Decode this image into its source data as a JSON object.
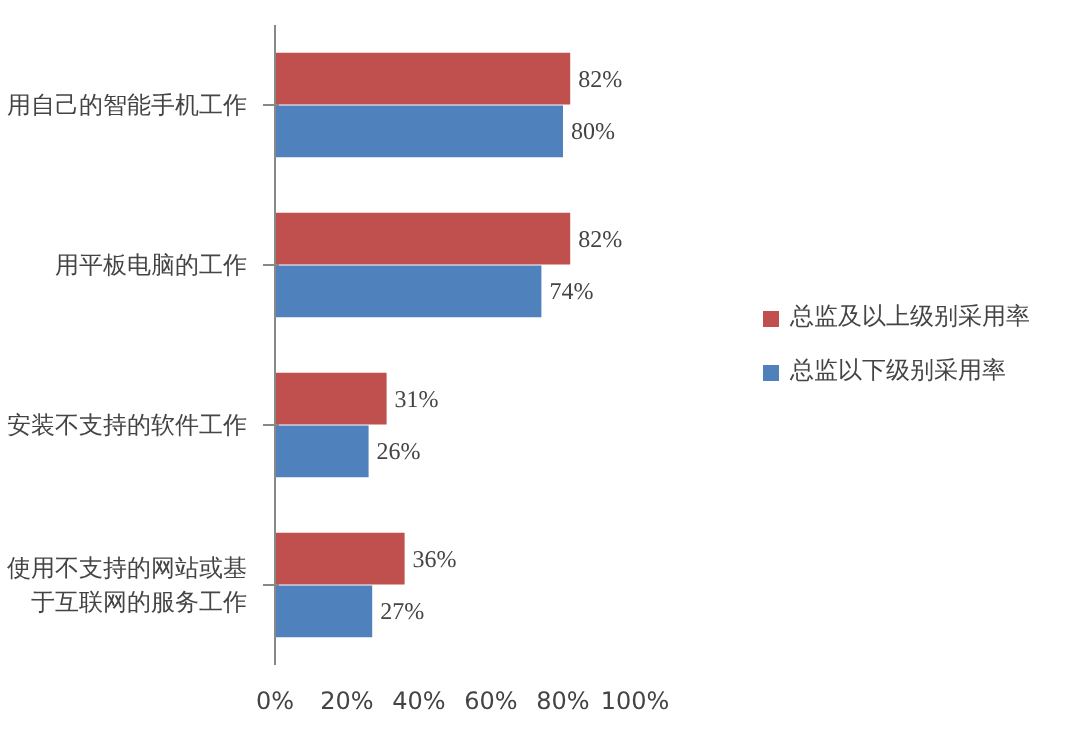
{
  "chart_data": {
    "type": "bar",
    "orientation": "horizontal",
    "categories": [
      "用自己的智能手机工作",
      "用平板电脑的工作",
      "安装不支持的软件工作",
      "使用不支持的网站或基于互联网的服务工作"
    ],
    "series": [
      {
        "name": "总监及以上级别采用率",
        "color": "#c0504d",
        "values": [
          82,
          82,
          31,
          36
        ],
        "value_labels": [
          "82%",
          "82%",
          "31%",
          "36%"
        ]
      },
      {
        "name": "总监以下级别采用率",
        "color": "#4f81bd",
        "values": [
          80,
          74,
          26,
          27
        ],
        "value_labels": [
          "80%",
          "74%",
          "26%",
          "27%"
        ]
      }
    ],
    "xlim": [
      0,
      100
    ],
    "xticks": [
      {
        "value": 0,
        "label": "0%"
      },
      {
        "value": 20,
        "label": "20%"
      },
      {
        "value": 40,
        "label": "40%"
      },
      {
        "value": 60,
        "label": "60%"
      },
      {
        "value": 80,
        "label": "80%"
      },
      {
        "value": 100,
        "label": "100%"
      }
    ],
    "grid": false,
    "legend": "right"
  }
}
